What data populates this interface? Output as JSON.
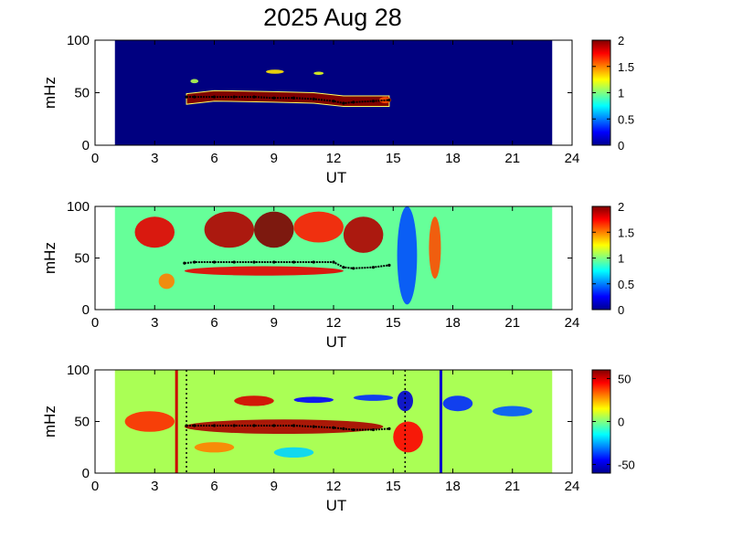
{
  "title": "2025 Aug 28",
  "chart_data": [
    {
      "type": "heatmap",
      "xlabel": "UT",
      "ylabel": "mHz",
      "xlim": [
        0,
        24
      ],
      "ylim": [
        0,
        100
      ],
      "xticks": [
        0,
        3,
        6,
        9,
        12,
        15,
        18,
        21,
        24
      ],
      "yticks": [
        0,
        50,
        100
      ],
      "data_range_x": [
        1,
        23
      ],
      "colorbar": {
        "min": 0,
        "max": 2,
        "ticks": [
          0,
          0.5,
          1,
          1.5,
          2
        ],
        "tick_labels": [
          "0",
          "0.5",
          "1",
          "1.5",
          "2"
        ]
      },
      "background_level": 0,
      "blobs": [
        {
          "x": [
            4.6,
            14.8
          ],
          "y": [
            38,
            50
          ],
          "level": 2,
          "profile": [
            [
              4.6,
              44
            ],
            [
              6,
              47
            ],
            [
              9,
              46
            ],
            [
              11,
              45
            ],
            [
              12.5,
              42
            ],
            [
              14,
              42
            ],
            [
              14.8,
              42
            ]
          ],
          "halfwidth": 5
        },
        {
          "x": [
            4.8,
            5.2
          ],
          "y": [
            59,
            63
          ],
          "level": 1.1
        },
        {
          "x": [
            8.6,
            9.5
          ],
          "y": [
            68,
            72
          ],
          "level": 1.3
        },
        {
          "x": [
            11,
            11.5
          ],
          "y": [
            67,
            70
          ],
          "level": 1.2
        },
        {
          "x": [
            14.3,
            14.9
          ],
          "y": [
            40,
            46
          ],
          "level": 1.6
        }
      ],
      "trace": {
        "x": [
          4.6,
          5,
          6,
          7,
          8,
          9,
          10,
          11,
          12,
          12.5,
          13,
          14,
          14.8
        ],
        "y": [
          46,
          46,
          46,
          46,
          46,
          45,
          45,
          44,
          42,
          40,
          41,
          42,
          43
        ]
      }
    },
    {
      "type": "heatmap",
      "xlabel": "UT",
      "ylabel": "mHz",
      "xlim": [
        0,
        24
      ],
      "ylim": [
        0,
        100
      ],
      "xticks": [
        0,
        3,
        6,
        9,
        12,
        15,
        18,
        21,
        24
      ],
      "yticks": [
        0,
        50,
        100
      ],
      "data_range_x": [
        1,
        23
      ],
      "colorbar": {
        "min": 0,
        "max": 2,
        "ticks": [
          0,
          0.5,
          1,
          1.5,
          2
        ],
        "tick_labels": [
          "0",
          "0.5",
          "1",
          "1.5",
          "2"
        ]
      },
      "background_level": 0.95,
      "blobs": [
        {
          "x": [
            2,
            4
          ],
          "y": [
            60,
            90
          ],
          "level": 1.8
        },
        {
          "x": [
            5.5,
            8
          ],
          "y": [
            60,
            95
          ],
          "level": 1.9
        },
        {
          "x": [
            8,
            10
          ],
          "y": [
            60,
            95
          ],
          "level": 2
        },
        {
          "x": [
            10,
            12.5
          ],
          "y": [
            65,
            95
          ],
          "level": 1.7
        },
        {
          "x": [
            12.5,
            14.5
          ],
          "y": [
            55,
            90
          ],
          "level": 1.9
        },
        {
          "x": [
            4.5,
            12.5
          ],
          "y": [
            33,
            42
          ],
          "level": 1.8
        },
        {
          "x": [
            15.2,
            16.2
          ],
          "y": [
            5,
            100
          ],
          "level": 0.4
        },
        {
          "x": [
            16.8,
            17.4
          ],
          "y": [
            30,
            90
          ],
          "level": 1.6
        },
        {
          "x": [
            3.2,
            4
          ],
          "y": [
            20,
            35
          ],
          "level": 1.5
        }
      ],
      "trace": {
        "x": [
          4.5,
          5,
          6,
          7,
          8,
          9,
          10,
          11,
          12,
          12.5,
          13,
          14,
          14.8
        ],
        "y": [
          45,
          46,
          46,
          46,
          46,
          46,
          46,
          46,
          46,
          41,
          40,
          41,
          43
        ]
      }
    },
    {
      "type": "heatmap",
      "xlabel": "UT",
      "ylabel": "mHz",
      "xlim": [
        0,
        24
      ],
      "ylim": [
        0,
        100
      ],
      "xticks": [
        0,
        3,
        6,
        9,
        12,
        15,
        18,
        21,
        24
      ],
      "yticks": [
        0,
        50,
        100
      ],
      "data_range_x": [
        1,
        23
      ],
      "colorbar": {
        "min": -60,
        "max": 60,
        "ticks": [
          -50,
          0,
          50
        ],
        "tick_labels": [
          "-50",
          "0",
          "50"
        ]
      },
      "background_level": 5,
      "blobs": [
        {
          "x": [
            4.5,
            14.5
          ],
          "y": [
            38,
            52
          ],
          "level": 55
        },
        {
          "x": [
            1.5,
            4
          ],
          "y": [
            40,
            60
          ],
          "level": 40
        },
        {
          "x": [
            15,
            16.5
          ],
          "y": [
            20,
            50
          ],
          "level": 45
        },
        {
          "x": [
            7,
            9
          ],
          "y": [
            65,
            75
          ],
          "level": 50
        },
        {
          "x": [
            10,
            12
          ],
          "y": [
            68,
            74
          ],
          "level": -45
        },
        {
          "x": [
            13,
            15
          ],
          "y": [
            70,
            76
          ],
          "level": -40
        },
        {
          "x": [
            15.2,
            16
          ],
          "y": [
            60,
            80
          ],
          "level": -50
        },
        {
          "x": [
            17.5,
            19
          ],
          "y": [
            60,
            75
          ],
          "level": -40
        },
        {
          "x": [
            20,
            22
          ],
          "y": [
            55,
            65
          ],
          "level": -35
        },
        {
          "x": [
            5,
            7
          ],
          "y": [
            20,
            30
          ],
          "level": 30
        },
        {
          "x": [
            9,
            11
          ],
          "y": [
            15,
            25
          ],
          "level": -20
        }
      ],
      "trace": {
        "x": [
          4.6,
          5,
          6,
          7,
          8,
          9,
          10,
          11,
          12,
          12.5,
          13,
          14,
          14.8
        ],
        "y": [
          46,
          46,
          46,
          46,
          46,
          46,
          46,
          45,
          44,
          43,
          42,
          42,
          43
        ]
      },
      "vertical_lines": [
        {
          "x": 4.1,
          "color": "#cc0000",
          "style": "solid"
        },
        {
          "x": 4.6,
          "color": "#000000",
          "style": "dotted"
        },
        {
          "x": 15.6,
          "color": "#000000",
          "style": "dotted"
        },
        {
          "x": 17.4,
          "color": "#0000cc",
          "style": "solid"
        }
      ]
    }
  ]
}
